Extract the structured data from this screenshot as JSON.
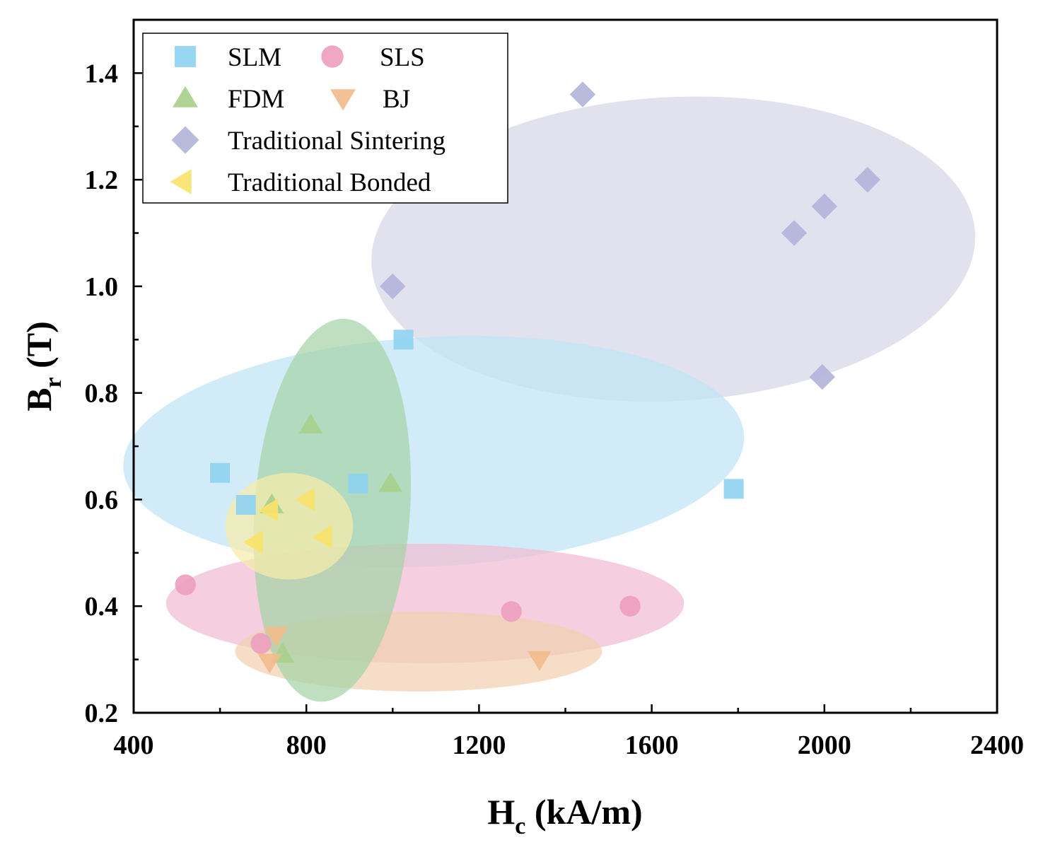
{
  "chart_data": {
    "type": "scatter",
    "title": "",
    "xlabel": {
      "main": "H",
      "sub": "c",
      "rest": " (kA/m)"
    },
    "ylabel": {
      "main": "B",
      "sub": "r",
      "rest": " (T)"
    },
    "xlim": [
      400,
      2400
    ],
    "ylim": [
      0.2,
      1.5
    ],
    "xticks": [
      400,
      800,
      1200,
      1600,
      2000,
      2400
    ],
    "xtick_labels": [
      "400",
      "800",
      "1200",
      "1600",
      "2000",
      "2400"
    ],
    "yticks": [
      0.2,
      0.4,
      0.6,
      0.8,
      1.0,
      1.2,
      1.4
    ],
    "ytick_labels": [
      "0.2",
      "0.4",
      "0.6",
      "0.8",
      "1.0",
      "1.2",
      "1.4"
    ],
    "legend_position": "top-left",
    "grid": false,
    "series": [
      {
        "name": "SLM",
        "marker": "square",
        "color": "#8fd3f0",
        "points": [
          [
            600,
            0.65
          ],
          [
            660,
            0.59
          ],
          [
            920,
            0.63
          ],
          [
            1025,
            0.9
          ],
          [
            1790,
            0.62
          ]
        ],
        "region": {
          "cx": 1095,
          "cy": 0.69,
          "rx": 720,
          "ry": 0.215,
          "rotate": -3,
          "color": "#bfe5f5"
        }
      },
      {
        "name": "SLS",
        "marker": "circle",
        "color": "#ee9fbf",
        "points": [
          [
            520,
            0.44
          ],
          [
            695,
            0.33
          ],
          [
            1275,
            0.39
          ],
          [
            1550,
            0.4
          ]
        ],
        "region": {
          "cx": 1075,
          "cy": 0.405,
          "rx": 600,
          "ry": 0.112,
          "rotate": 0,
          "color": "#f1bdd3"
        }
      },
      {
        "name": "FDM",
        "marker": "triangle-up",
        "color": "#a8d08d",
        "points": [
          [
            720,
            0.59
          ],
          [
            810,
            0.74
          ],
          [
            995,
            0.63
          ],
          [
            745,
            0.31
          ]
        ],
        "region": {
          "cx": 860,
          "cy": 0.58,
          "rx": 180,
          "ry": 0.36,
          "rotate": 4,
          "color": "#a6d3a8"
        }
      },
      {
        "name": "BJ",
        "marker": "triangle-down",
        "color": "#f2bc8c",
        "points": [
          [
            730,
            0.345
          ],
          [
            715,
            0.295
          ],
          [
            1340,
            0.3
          ]
        ],
        "region": {
          "cx": 1060,
          "cy": 0.315,
          "rx": 425,
          "ry": 0.075,
          "rotate": 0,
          "color": "#f1d0b1"
        }
      },
      {
        "name": "Traditional Sintering",
        "marker": "diamond",
        "color": "#b3b4d9",
        "points": [
          [
            1000,
            1.0
          ],
          [
            1440,
            1.36
          ],
          [
            1930,
            1.1
          ],
          [
            2000,
            1.15
          ],
          [
            2100,
            1.2
          ],
          [
            1995,
            0.83
          ]
        ],
        "region": {
          "cx": 1650,
          "cy": 1.07,
          "rx": 700,
          "ry": 0.285,
          "rotate": -3,
          "color": "#d7d6e8"
        }
      },
      {
        "name": "Traditional Bonded",
        "marker": "triangle-left",
        "color": "#f8e36c",
        "points": [
          [
            715,
            0.58
          ],
          [
            800,
            0.6
          ],
          [
            680,
            0.52
          ],
          [
            840,
            0.53
          ]
        ],
        "region": {
          "cx": 760,
          "cy": 0.55,
          "rx": 148,
          "ry": 0.1,
          "rotate": 0,
          "color": "#f7ecaa"
        }
      }
    ]
  }
}
